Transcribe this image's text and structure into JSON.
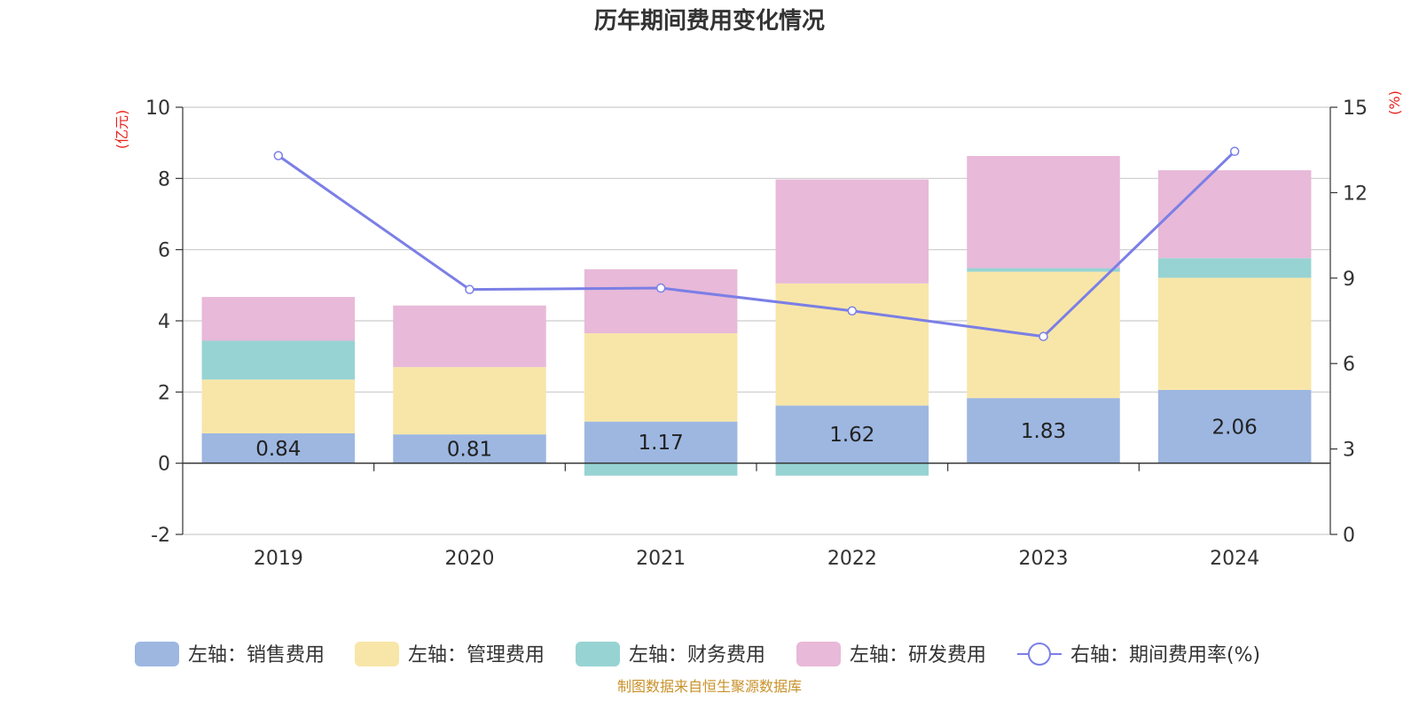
{
  "title": "历年期间费用变化情况",
  "source": "制图数据来自恒生聚源数据库",
  "colors": {
    "sales": "#9db7e1",
    "admin": "#f8e6a8",
    "finance": "#97d3d3",
    "rd": "#e8b9d8",
    "rate": "#7b7fe6",
    "unit": "#e8211c",
    "source": "#c8922a"
  },
  "chart_data": {
    "type": "bar",
    "stacked": true,
    "categories": [
      "2019",
      "2020",
      "2021",
      "2022",
      "2023",
      "2024"
    ],
    "left_axis": {
      "unit": "(亿元)",
      "ylim": [
        -2,
        10
      ],
      "ticks": [
        -2,
        0,
        2,
        4,
        6,
        8,
        10
      ]
    },
    "right_axis": {
      "unit": "(%)",
      "ylim": [
        0,
        15
      ],
      "ticks": [
        0,
        3,
        6,
        9,
        12,
        15
      ]
    },
    "series": [
      {
        "name": "左轴：销售费用",
        "key": "sales",
        "axis": "left",
        "type": "bar",
        "values": [
          0.84,
          0.81,
          1.17,
          1.62,
          1.83,
          2.06
        ],
        "labels": [
          "0.84",
          "0.81",
          "1.17",
          "1.62",
          "1.83",
          "2.06"
        ]
      },
      {
        "name": "左轴：管理费用",
        "key": "admin",
        "axis": "left",
        "type": "bar",
        "values": [
          1.51,
          1.89,
          2.48,
          3.43,
          3.55,
          3.15
        ]
      },
      {
        "name": "左轴：财务费用",
        "key": "finance",
        "axis": "left",
        "type": "bar",
        "values": [
          1.09,
          -0.02,
          -0.35,
          -0.35,
          0.1,
          0.55
        ]
      },
      {
        "name": "左轴：研发费用",
        "key": "rd",
        "axis": "left",
        "type": "bar",
        "values": [
          1.23,
          1.73,
          1.8,
          2.92,
          3.15,
          2.47
        ]
      },
      {
        "name": "右轴：期间费用率(%)",
        "key": "rate",
        "axis": "right",
        "type": "line",
        "values": [
          13.3,
          8.6,
          8.65,
          7.85,
          6.95,
          13.45
        ]
      }
    ],
    "grid": true,
    "legend": "bottom"
  }
}
